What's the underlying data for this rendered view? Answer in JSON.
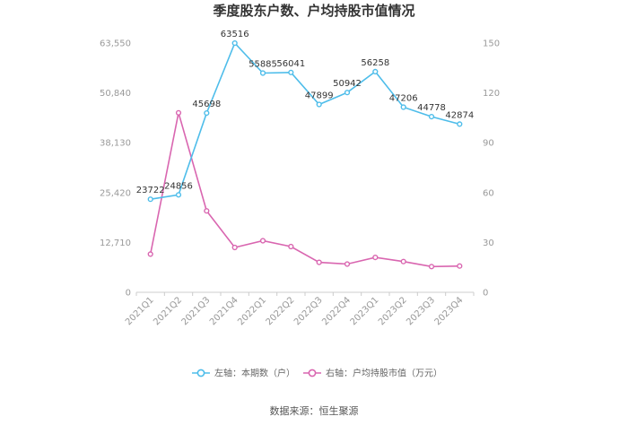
{
  "chart_data": {
    "type": "line",
    "title": "季度股东户数、户均持股市值情况",
    "categories": [
      "2021Q1",
      "2021Q2",
      "2021Q3",
      "2021Q4",
      "2022Q1",
      "2022Q2",
      "2022Q3",
      "2022Q4",
      "2023Q1",
      "2023Q2",
      "2023Q3",
      "2023Q4"
    ],
    "left_axis": {
      "min": 0,
      "max": 63550,
      "ticks": [
        "0",
        "12,710",
        "25,420",
        "38,130",
        "50,840",
        "63,550"
      ]
    },
    "right_axis": {
      "min": 0,
      "max": 150,
      "ticks": [
        "0",
        "30",
        "60",
        "90",
        "120",
        "150"
      ]
    },
    "series": [
      {
        "name": "左轴：本期数（户）",
        "axis": "left",
        "color": "#4ebdea",
        "values": [
          23722,
          24856,
          45698,
          63516,
          55885,
          56041,
          47899,
          50942,
          56258,
          47206,
          44778,
          42874
        ],
        "labels": [
          "23722",
          "24856",
          "45698",
          "63516",
          "55885",
          "56041",
          "47899",
          "50942",
          "56258",
          "47206",
          "44778",
          "42874"
        ]
      },
      {
        "name": "右轴：户均持股市值（万元）",
        "axis": "right",
        "color": "#d966b0",
        "values": [
          23,
          108,
          49,
          27,
          31,
          27.5,
          18,
          17,
          21,
          18.5,
          15.5,
          15.8
        ]
      }
    ],
    "legend_position": "bottom",
    "grid": false
  },
  "source": "数据来源：恒生聚源"
}
